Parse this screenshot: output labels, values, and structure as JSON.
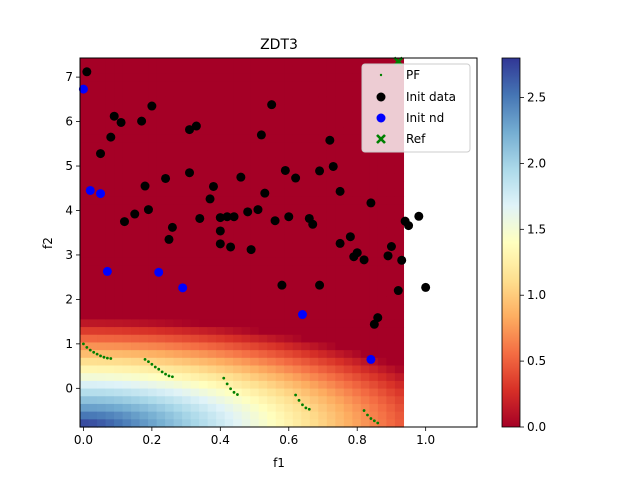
{
  "chart_data": {
    "type": "scatter",
    "title": "ZDT3",
    "xlabel": "f1",
    "ylabel": "f2",
    "xlim": [
      -0.01,
      1.15
    ],
    "ylim": [
      -0.87,
      7.43
    ],
    "xticks": [
      0.0,
      0.2,
      0.4,
      0.6,
      0.8,
      1.0
    ],
    "xtick_labels": [
      "0.0",
      "0.2",
      "0.4",
      "0.6",
      "0.8",
      "1.0"
    ],
    "yticks": [
      0,
      1,
      2,
      3,
      4,
      5,
      6,
      7
    ],
    "ytick_labels": [
      "0",
      "1",
      "2",
      "3",
      "4",
      "5",
      "6",
      "7"
    ],
    "heatmap": {
      "x_range": [
        -0.01,
        0.935
      ],
      "y_range": [
        -0.87,
        7.43
      ],
      "colormap": "RdYlBu",
      "value_range": [
        0.0,
        2.8
      ],
      "description": "value decreases with distance from origin; saturates to 0 above about f2=2.3",
      "origin_value": 2.8,
      "decay_scale": 2.45
    },
    "colorbar": {
      "ticks": [
        0.0,
        0.5,
        1.0,
        1.5,
        2.0,
        2.5
      ],
      "tick_labels": [
        "0.0",
        "0.5",
        "1.0",
        "1.5",
        "2.0",
        "2.5"
      ],
      "range": [
        0.0,
        2.8
      ]
    },
    "legend": {
      "location": "upper-right",
      "entries": [
        {
          "label": "PF",
          "marker": "dot-small",
          "color": "#008000"
        },
        {
          "label": "Init data",
          "marker": "circle",
          "color": "#000000"
        },
        {
          "label": "Init nd",
          "marker": "circle",
          "color": "#0000ff"
        },
        {
          "label": "Ref",
          "marker": "x",
          "color": "#008000"
        }
      ]
    },
    "series": [
      {
        "name": "PF",
        "color": "#008000",
        "segments": [
          {
            "x": [
              0.0,
              0.01,
              0.02,
              0.03,
              0.04,
              0.05,
              0.06,
              0.07,
              0.08
            ],
            "y": [
              1.0,
              0.92,
              0.86,
              0.81,
              0.77,
              0.73,
              0.7,
              0.68,
              0.67
            ]
          },
          {
            "x": [
              0.18,
              0.19,
              0.2,
              0.21,
              0.22,
              0.23,
              0.24,
              0.25,
              0.26
            ],
            "y": [
              0.65,
              0.6,
              0.54,
              0.48,
              0.43,
              0.37,
              0.32,
              0.28,
              0.26
            ]
          },
          {
            "x": [
              0.41,
              0.42,
              0.43,
              0.44,
              0.45
            ],
            "y": [
              0.23,
              0.1,
              -0.01,
              -0.09,
              -0.14
            ]
          },
          {
            "x": [
              0.62,
              0.63,
              0.64,
              0.65,
              0.66
            ],
            "y": [
              -0.15,
              -0.27,
              -0.37,
              -0.44,
              -0.47
            ]
          },
          {
            "x": [
              0.82,
              0.83,
              0.84,
              0.85,
              0.86
            ],
            "y": [
              -0.5,
              -0.6,
              -0.68,
              -0.73,
              -0.78
            ]
          }
        ]
      },
      {
        "name": "Init data",
        "color": "#000000",
        "x": [
          0.01,
          0.05,
          0.08,
          0.09,
          0.11,
          0.17,
          0.2,
          0.12,
          0.15,
          0.18,
          0.24,
          0.26,
          0.25,
          0.31,
          0.31,
          0.33,
          0.38,
          0.37,
          0.4,
          0.4,
          0.42,
          0.43,
          0.44,
          0.46,
          0.48,
          0.49,
          0.51,
          0.52,
          0.53,
          0.55,
          0.56,
          0.58,
          0.59,
          0.6,
          0.62,
          0.66,
          0.67,
          0.69,
          0.69,
          0.72,
          0.73,
          0.75,
          0.75,
          0.78,
          0.79,
          0.8,
          0.82,
          0.84,
          0.85,
          0.86,
          0.89,
          0.9,
          0.92,
          0.93,
          0.94,
          0.95,
          0.98,
          1.0,
          0.4,
          0.34,
          0.19
        ],
        "y": [
          7.12,
          5.28,
          5.65,
          6.12,
          5.98,
          6.01,
          6.35,
          3.75,
          3.92,
          4.55,
          4.72,
          3.62,
          3.35,
          5.82,
          4.85,
          5.9,
          4.54,
          4.26,
          3.54,
          3.25,
          3.86,
          3.18,
          3.86,
          4.75,
          3.97,
          3.12,
          4.02,
          5.7,
          4.39,
          6.38,
          3.77,
          2.32,
          4.9,
          3.86,
          4.73,
          3.82,
          3.69,
          4.89,
          2.32,
          5.58,
          4.99,
          4.43,
          3.26,
          3.41,
          2.96,
          3.05,
          2.89,
          4.17,
          1.44,
          1.59,
          2.98,
          3.19,
          2.2,
          2.88,
          3.76,
          3.66,
          3.87,
          2.27,
          3.84,
          3.82,
          4.02
        ]
      },
      {
        "name": "Init nd",
        "color": "#0000ff",
        "x": [
          0.0,
          0.02,
          0.05,
          0.07,
          0.22,
          0.29,
          0.64,
          0.84
        ],
        "y": [
          6.73,
          4.45,
          4.38,
          2.63,
          2.61,
          2.26,
          1.66,
          0.65
        ]
      },
      {
        "name": "Ref",
        "color": "#008000",
        "x": [
          0.92
        ],
        "y": [
          7.35
        ]
      }
    ]
  }
}
